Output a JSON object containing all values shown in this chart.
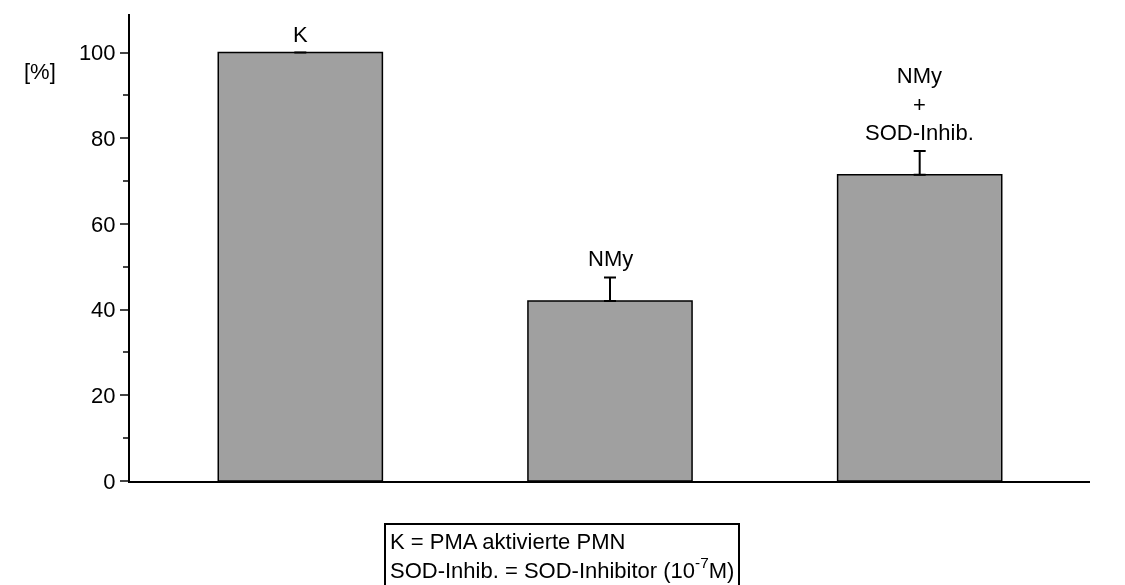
{
  "chart_data": {
    "type": "bar",
    "ylabel": "[%]",
    "categories": [
      "K",
      "NMy",
      "NMy\n+\nSOD-Inhib."
    ],
    "values": [
      100,
      42,
      71.5
    ],
    "color": "#a0a0a0",
    "errors": [
      null,
      [
        42,
        47.5
      ],
      [
        71.5,
        77
      ]
    ],
    "ylim": [
      0,
      109
    ],
    "yticks": [
      0,
      20,
      40,
      60,
      80,
      100
    ],
    "tick_labels": "y",
    "annotations": [
      "K = PMA aktivierte PMN\nSOD-Inhib. = SOD-Inhibitor (10$^{-7}$M)"
    ]
  }
}
